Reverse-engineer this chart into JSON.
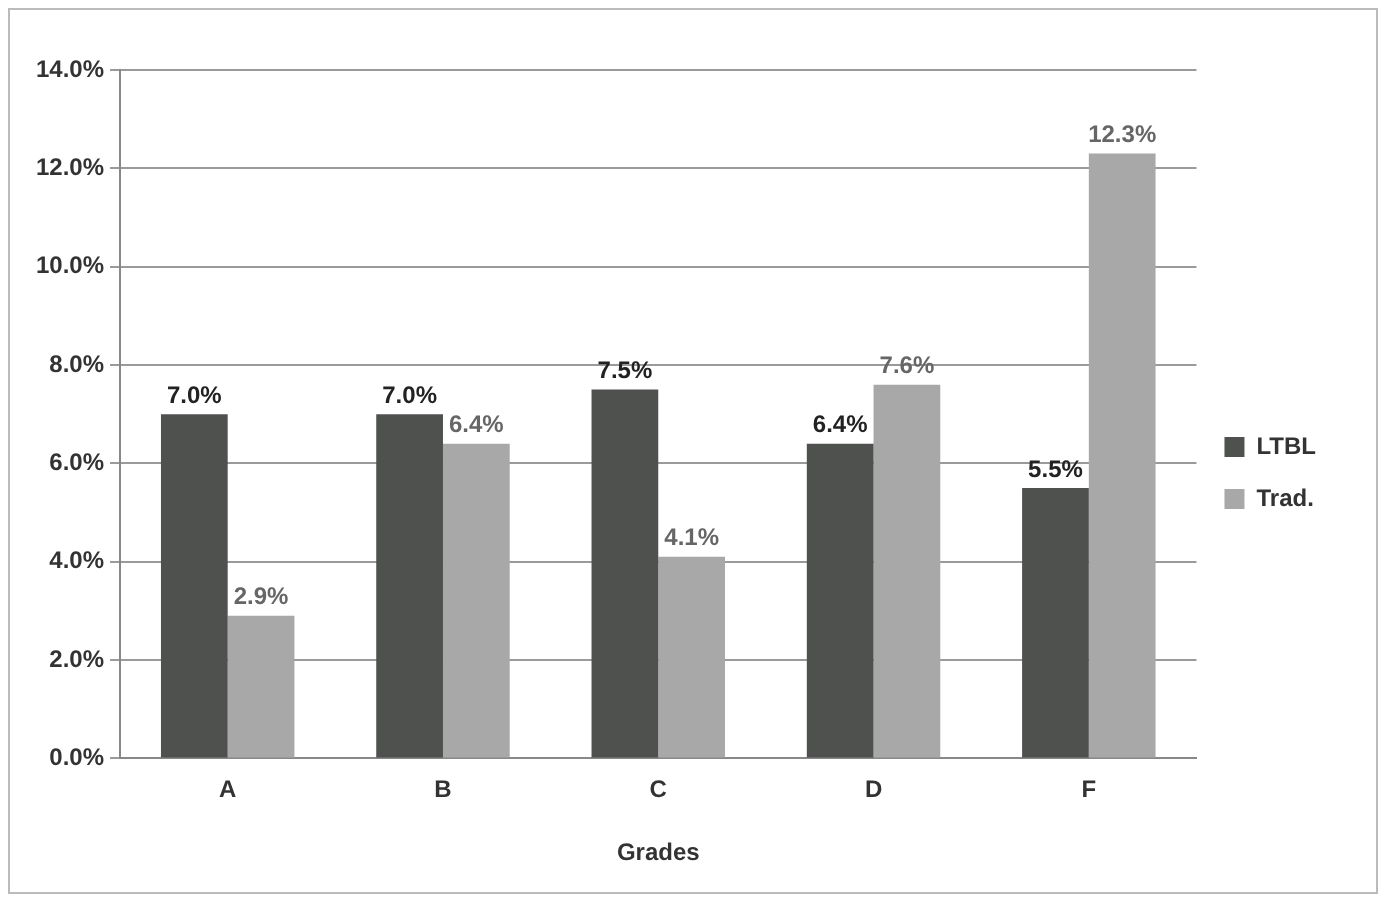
{
  "chart_data": {
    "type": "bar",
    "xlabel": "Grades",
    "categories": [
      "A",
      "B",
      "C",
      "D",
      "F"
    ],
    "series": [
      {
        "name": "LTBL",
        "color": "#4f514f",
        "values": [
          7.0,
          7.0,
          7.5,
          6.4,
          5.5
        ],
        "value_labels": [
          "7.0%",
          "7.0%",
          "7.5%",
          "6.4%",
          "5.5%"
        ]
      },
      {
        "name": "Trad.",
        "color": "#a8a8a8",
        "values": [
          2.9,
          6.4,
          4.1,
          7.6,
          12.3
        ],
        "value_labels": [
          "2.9%",
          "6.4%",
          "4.1%",
          "7.6%",
          "12.3%"
        ]
      }
    ],
    "ylim": [
      0,
      14
    ],
    "yticks": [
      {
        "value": 0,
        "label": "0.0%"
      },
      {
        "value": 2,
        "label": "2.0%"
      },
      {
        "value": 4,
        "label": "4.0%"
      },
      {
        "value": 6,
        "label": "6.0%"
      },
      {
        "value": 8,
        "label": "8.0%"
      },
      {
        "value": 10,
        "label": "10.0%"
      },
      {
        "value": 12,
        "label": "12.0%"
      },
      {
        "value": 14,
        "label": "14.0%"
      }
    ],
    "grid": "y",
    "legend": "right"
  }
}
